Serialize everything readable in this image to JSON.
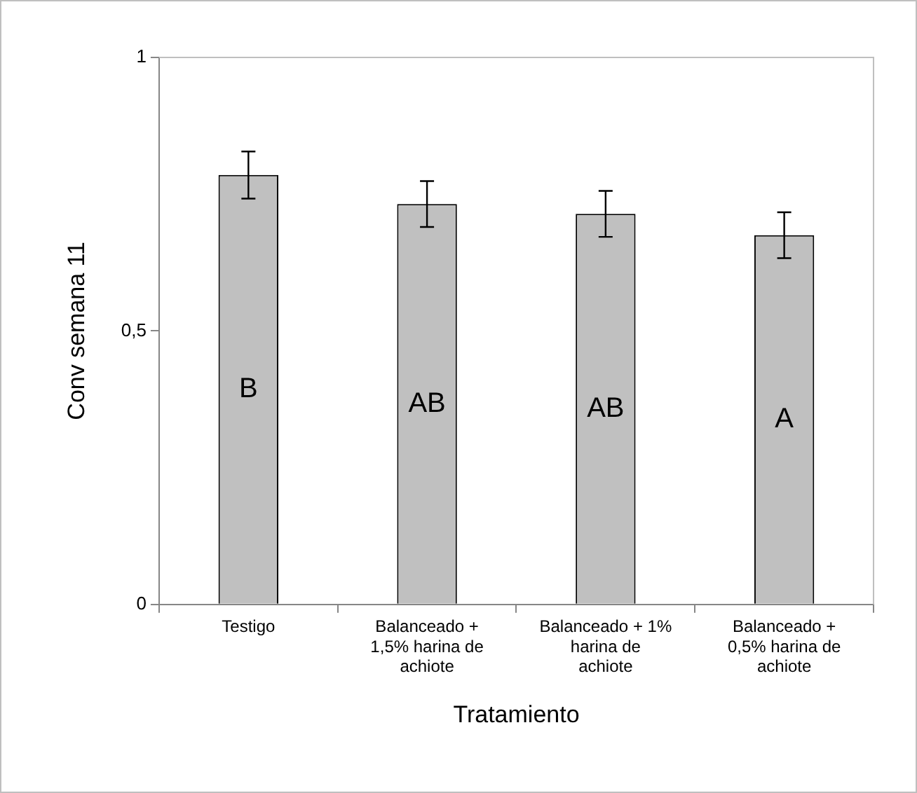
{
  "chart_data": {
    "type": "bar",
    "xlabel": "Tratamiento",
    "ylabel": "Conv semana 11",
    "categories": [
      "Testigo",
      "Balanceado + 1,5% harina de achiote",
      "Balanceado + 1% harina de achiote",
      "Balanceado + 0,5% harina de achiote"
    ],
    "values": [
      0.785,
      0.732,
      0.714,
      0.675
    ],
    "errors": [
      0.043,
      0.042,
      0.042,
      0.042
    ],
    "color": "#c0c0c0",
    "ylim": [
      0,
      1
    ],
    "yticks": [
      0,
      {
        "value": 0.5,
        "label": "0,5"
      },
      1
    ],
    "grid": false,
    "annotations": [
      "B",
      "AB",
      "AB",
      "A"
    ]
  }
}
